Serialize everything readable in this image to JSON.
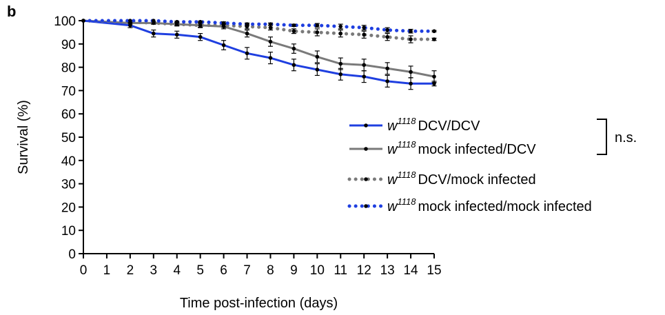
{
  "panel_label": "b",
  "chart_data": {
    "type": "line",
    "xlabel": "Time post-infection (days)",
    "ylabel": "Survival (%)",
    "xlim": [
      0,
      15
    ],
    "ylim": [
      0,
      100
    ],
    "x_ticks": [
      0,
      1,
      2,
      3,
      4,
      5,
      6,
      7,
      8,
      9,
      10,
      11,
      12,
      13,
      14,
      15
    ],
    "y_ticks": [
      0,
      10,
      20,
      30,
      40,
      50,
      60,
      70,
      80,
      90,
      100
    ],
    "grid": false,
    "legend_position": "right",
    "series": [
      {
        "genotype": "w",
        "genotype_sup": "1118",
        "name": "DCV/DCV",
        "color": "#1f3fe0",
        "style": "solid",
        "x": [
          0,
          2,
          3,
          4,
          5,
          6,
          7,
          8,
          9,
          10,
          11,
          12,
          13,
          14,
          15
        ],
        "y": [
          100,
          98,
          94.5,
          94,
          93,
          89.5,
          86,
          84,
          81,
          79,
          77,
          76,
          74,
          73,
          73
        ],
        "err": [
          0,
          1,
          1.5,
          1.5,
          1.5,
          2,
          2.5,
          2.5,
          2.5,
          2.5,
          2.5,
          2.5,
          2.5,
          2.5,
          1
        ]
      },
      {
        "genotype": "w",
        "genotype_sup": "1118",
        "name": "mock infected/DCV",
        "color": "#7a7a7a",
        "style": "solid",
        "x": [
          0,
          2,
          3,
          4,
          5,
          6,
          7,
          8,
          9,
          10,
          11,
          12,
          13,
          14,
          15
        ],
        "y": [
          100,
          99,
          99,
          98.5,
          98,
          97.5,
          94.5,
          91,
          88,
          84.5,
          81.5,
          81,
          79.5,
          78,
          76
        ],
        "err": [
          0,
          0.5,
          0.5,
          0.8,
          1,
          1,
          1.5,
          2,
          2,
          2.5,
          2.5,
          2.5,
          2.5,
          2.5,
          2.5
        ]
      },
      {
        "genotype": "w",
        "genotype_sup": "1118",
        "name": "DCV/mock infected",
        "color": "#7a7a7a",
        "style": "dotted",
        "x": [
          0,
          2,
          3,
          4,
          5,
          6,
          7,
          8,
          9,
          10,
          11,
          12,
          13,
          14,
          15
        ],
        "y": [
          100,
          99.5,
          99,
          98.5,
          98,
          98,
          97.5,
          97,
          95.5,
          95,
          94.5,
          94,
          93,
          92,
          92
        ],
        "err": [
          0,
          0.3,
          0.5,
          0.5,
          0.8,
          0.8,
          1,
          1,
          1,
          1.5,
          1.5,
          1.5,
          1.5,
          1.5,
          0.5
        ]
      },
      {
        "genotype": "w",
        "genotype_sup": "1118",
        "name": "mock infected/mock infected",
        "color": "#1f3fe0",
        "style": "dotted",
        "x": [
          0,
          2,
          3,
          4,
          5,
          6,
          7,
          8,
          9,
          10,
          11,
          12,
          13,
          14,
          15
        ],
        "y": [
          100,
          100,
          100,
          99.5,
          99.5,
          99,
          98.5,
          98.5,
          98,
          98,
          97.5,
          97,
          96,
          95.5,
          95.5
        ],
        "err": [
          0,
          0,
          0,
          0.3,
          0.3,
          0.5,
          0.5,
          0.5,
          0.5,
          0.8,
          1,
          1,
          1,
          0.8,
          0.3
        ]
      }
    ],
    "bracket_label": "n.s."
  }
}
